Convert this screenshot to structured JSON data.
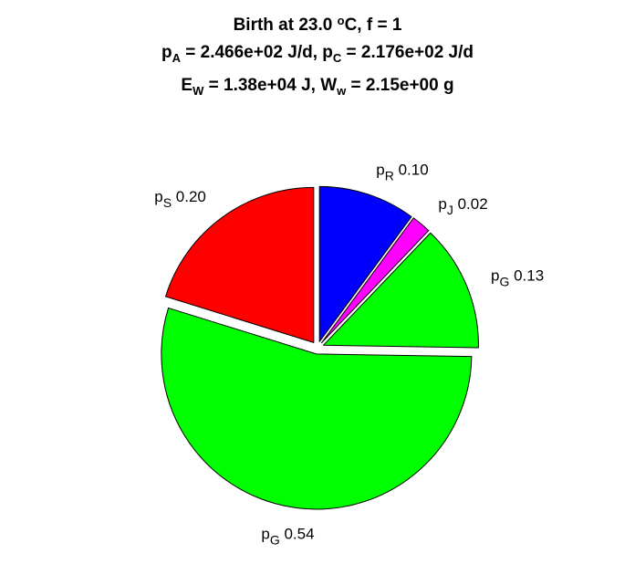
{
  "title": {
    "line1_text": "Birth at 23.0 ",
    "line1_sup": "o",
    "line1_rest": "C, f = 1",
    "pA_sym": "p",
    "pA_sub": "A",
    "pA_val": " = 2.466e+02 J/d, ",
    "pC_sym": "p",
    "pC_sub": "C",
    "pC_val": " = 2.176e+02 J/d",
    "EW_sym": "E",
    "EW_sub": "W",
    "EW_val": " = 1.38e+04 J, ",
    "Ww_sym": "W",
    "Ww_sub": "w",
    "Ww_val": " = 2.15e+00 g"
  },
  "chart_data": {
    "type": "pie",
    "start_angle_deg": 90,
    "direction": "clockwise",
    "exploded": true,
    "slices": [
      {
        "sym": "p",
        "sub": "R",
        "label": "0.10",
        "value": 0.1,
        "color": "#0000ff"
      },
      {
        "sym": "p",
        "sub": "J",
        "label": "0.02",
        "value": 0.02,
        "color": "#ff00ff"
      },
      {
        "sym": "p",
        "sub": "G",
        "label": "0.13",
        "value": 0.13,
        "color": "#00ff00"
      },
      {
        "sym": "p",
        "sub": "G",
        "label": "0.54",
        "value": 0.54,
        "color": "#00ff00"
      },
      {
        "sym": "p",
        "sub": "S",
        "label": "0.20",
        "value": 0.2,
        "color": "#ff0000"
      }
    ]
  }
}
